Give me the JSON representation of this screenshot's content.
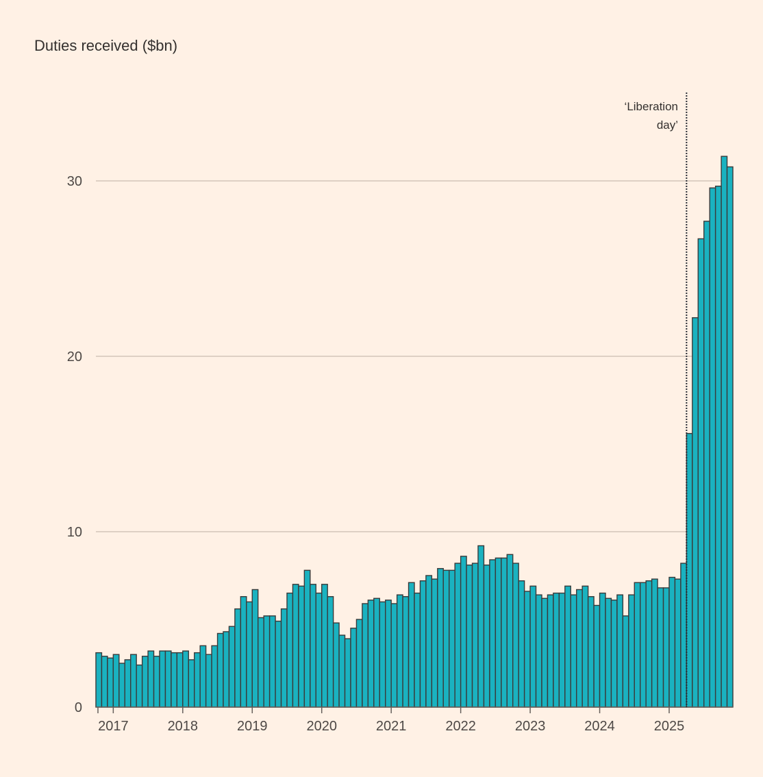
{
  "chart_data": {
    "type": "bar",
    "title": "Duties received ($bn)",
    "xlabel": "",
    "ylabel": "Duties received ($bn)",
    "ylim": [
      0,
      35
    ],
    "yticks": [
      0,
      10,
      20,
      30
    ],
    "grid": true,
    "start_month": "2016-10",
    "x_tick_labels": [
      "2017",
      "2018",
      "2019",
      "2020",
      "2021",
      "2022",
      "2023",
      "2024",
      "2025"
    ],
    "colors": {
      "bar": "#1AB2C0",
      "bar_edge": "#3a3a3a",
      "grid": "#D3C5BA",
      "axis": "#66605C",
      "annotation_line": "#262A33"
    },
    "annotation": {
      "line1": "‘Liberation",
      "line2": "day’",
      "month": "2025-04"
    },
    "series": [
      {
        "name": "Duties received ($bn)",
        "values": [
          3.1,
          2.9,
          2.8,
          3.0,
          2.5,
          2.7,
          3.0,
          2.4,
          2.9,
          3.2,
          2.9,
          3.2,
          3.2,
          3.1,
          3.1,
          3.2,
          2.7,
          3.1,
          3.5,
          3.0,
          3.5,
          4.2,
          4.3,
          4.6,
          5.6,
          6.3,
          6.0,
          6.7,
          5.1,
          5.2,
          5.2,
          4.9,
          5.6,
          6.5,
          7.0,
          6.9,
          7.8,
          7.0,
          6.5,
          7.0,
          6.3,
          4.8,
          4.1,
          3.9,
          4.5,
          5.0,
          5.9,
          6.1,
          6.2,
          6.0,
          6.1,
          5.9,
          6.4,
          6.3,
          7.1,
          6.5,
          7.2,
          7.5,
          7.3,
          7.9,
          7.8,
          7.8,
          8.2,
          8.6,
          8.1,
          8.2,
          9.2,
          8.1,
          8.4,
          8.5,
          8.5,
          8.7,
          8.2,
          7.2,
          6.6,
          6.9,
          6.4,
          6.2,
          6.4,
          6.5,
          6.5,
          6.9,
          6.4,
          6.7,
          6.9,
          6.3,
          5.8,
          6.5,
          6.2,
          6.1,
          6.4,
          5.2,
          6.4,
          7.1,
          7.1,
          7.2,
          7.3,
          6.8,
          6.8,
          7.4,
          7.3,
          8.2,
          15.6,
          22.2,
          26.7,
          27.7,
          29.6,
          29.7,
          31.4,
          30.8
        ]
      }
    ]
  }
}
